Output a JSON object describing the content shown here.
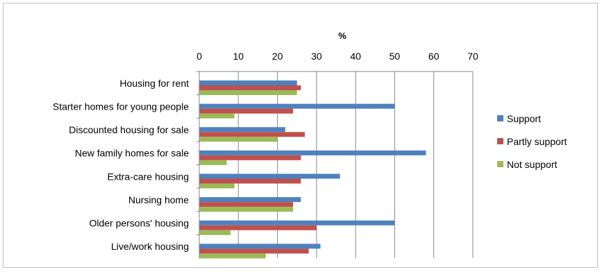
{
  "chart_data": {
    "type": "bar",
    "orientation": "horizontal",
    "title": "",
    "xlabel": "%",
    "ylabel": "",
    "xlim": [
      0,
      70
    ],
    "x_ticks": [
      "0",
      "10",
      "20",
      "30",
      "40",
      "50",
      "60",
      "70"
    ],
    "grid": true,
    "legend_position": "right",
    "categories": [
      "Housing for rent",
      "Starter homes for young people",
      "Discounted housing for sale",
      "New family homes for sale",
      "Extra-care housing",
      "Nursing home",
      "Older persons' housing",
      "Live/work housing"
    ],
    "series": [
      {
        "name": "Support",
        "color": "#4f81bd",
        "values": [
          25,
          50,
          22,
          58,
          36,
          26,
          50,
          31
        ]
      },
      {
        "name": "Partly support",
        "color": "#c0504d",
        "values": [
          26,
          24,
          27,
          26,
          26,
          24,
          30,
          28
        ]
      },
      {
        "name": "Not support",
        "color": "#9bbb59",
        "values": [
          25,
          9,
          20,
          7,
          9,
          24,
          8,
          17
        ]
      }
    ]
  }
}
